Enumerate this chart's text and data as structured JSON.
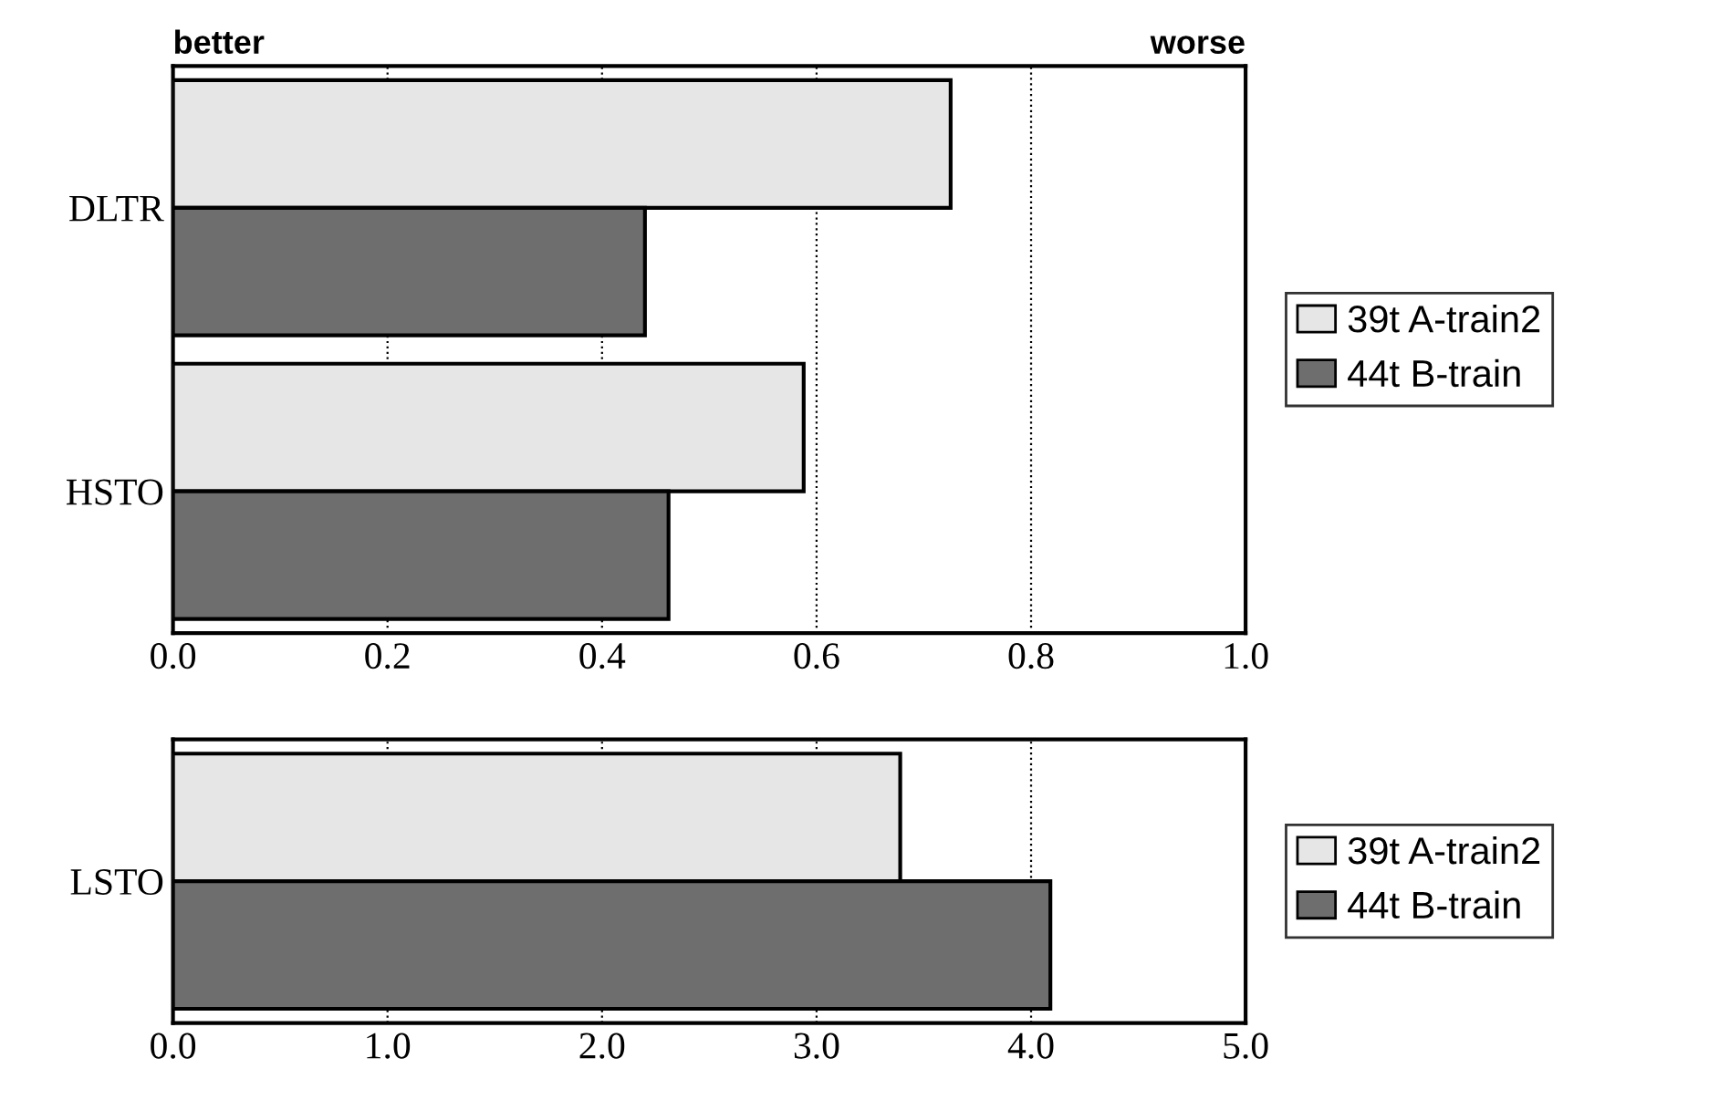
{
  "chart_data": [
    {
      "type": "bar",
      "orientation": "horizontal",
      "categories": [
        "DLTR",
        "HSTO"
      ],
      "series": [
        {
          "name": "39t A-train2",
          "color": "#e6e6e6",
          "values": [
            0.725,
            0.588
          ]
        },
        {
          "name": "44t B-train",
          "color": "#6e6e6e",
          "values": [
            0.44,
            0.462
          ]
        }
      ],
      "xlim": [
        0.0,
        1.0
      ],
      "xticks": [
        {
          "value": 0,
          "label": "0.0"
        },
        0.2,
        0.4,
        0.6,
        0.8,
        {
          "value": 1,
          "label": "1.0"
        }
      ],
      "grid": "x",
      "legend": "right",
      "annotations": [
        "better",
        "worse"
      ]
    },
    {
      "type": "bar",
      "orientation": "horizontal",
      "categories": [
        "LSTO"
      ],
      "series": [
        {
          "name": "39t A-train2",
          "color": "#e6e6e6",
          "values": [
            3.39
          ]
        },
        {
          "name": "44t B-train",
          "color": "#6e6e6e",
          "values": [
            4.09
          ]
        }
      ],
      "xlim": [
        0.0,
        5.0
      ],
      "xticks": [
        {
          "value": 0,
          "label": "0.0"
        },
        {
          "value": 1,
          "label": "1.0"
        },
        {
          "value": 2,
          "label": "2.0"
        },
        {
          "value": 3,
          "label": "3.0"
        },
        {
          "value": 4,
          "label": "4.0"
        },
        {
          "value": 5,
          "label": "5.0"
        }
      ],
      "grid": "x",
      "legend": "right"
    }
  ]
}
